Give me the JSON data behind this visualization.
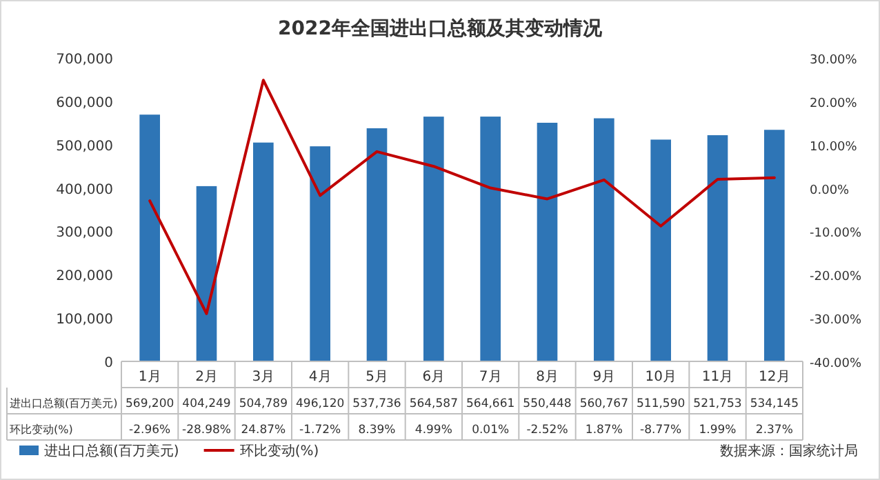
{
  "chart_data": {
    "type": "bar",
    "title": "2022年全国进出口总额及其变动情况",
    "categories": [
      "1月",
      "2月",
      "3月",
      "4月",
      "5月",
      "6月",
      "7月",
      "8月",
      "9月",
      "10月",
      "11月",
      "12月"
    ],
    "series": [
      {
        "name": "进出口总额(百万美元)",
        "color": "#2e75b6",
        "values": [
          569200,
          404249,
          504789,
          496120,
          537736,
          564587,
          564661,
          550448,
          560767,
          511590,
          521753,
          534145
        ],
        "value_labels": [
          "569,200",
          "404,249",
          "504,789",
          "496,120",
          "537,736",
          "564,587",
          "564,661",
          "550,448",
          "560,767",
          "511,590",
          "521,753",
          "534,145"
        ]
      },
      {
        "name": "环比变动(%)",
        "type": "line",
        "axis": "y2",
        "color": "#c00000",
        "values": [
          -2.96,
          -28.98,
          24.87,
          -1.72,
          8.39,
          4.99,
          0.01,
          -2.52,
          1.87,
          -8.77,
          1.99,
          2.37
        ],
        "value_labels": [
          "-2.96%",
          "-28.98%",
          "24.87%",
          "-1.72%",
          "8.39%",
          "4.99%",
          "0.01%",
          "-2.52%",
          "1.87%",
          "-8.77%",
          "1.99%",
          "2.37%"
        ]
      }
    ],
    "ylim": [
      0,
      700000
    ],
    "yticks": [
      {
        "value": 0,
        "label": "0"
      },
      {
        "value": 100000,
        "label": "100,000"
      },
      {
        "value": 200000,
        "label": "200,000"
      },
      {
        "value": 300000,
        "label": "300,000"
      },
      {
        "value": 400000,
        "label": "400,000"
      },
      {
        "value": 500000,
        "label": "500,000"
      },
      {
        "value": 600000,
        "label": "600,000"
      },
      {
        "value": 700000,
        "label": "700,000"
      }
    ],
    "y2lim": [
      -40,
      30
    ],
    "y2ticks": [
      {
        "value": -40,
        "label": "-40.00%"
      },
      {
        "value": -30,
        "label": "-30.00%"
      },
      {
        "value": -20,
        "label": "-20.00%"
      },
      {
        "value": -10,
        "label": "-10.00%"
      },
      {
        "value": 0,
        "label": "0.00%"
      },
      {
        "value": 10,
        "label": "10.00%"
      },
      {
        "value": 20,
        "label": "20.00%"
      },
      {
        "value": 30,
        "label": "30.00%"
      }
    ],
    "legend": "bottom",
    "annotations": [
      "数据来源：国家统计局"
    ]
  }
}
